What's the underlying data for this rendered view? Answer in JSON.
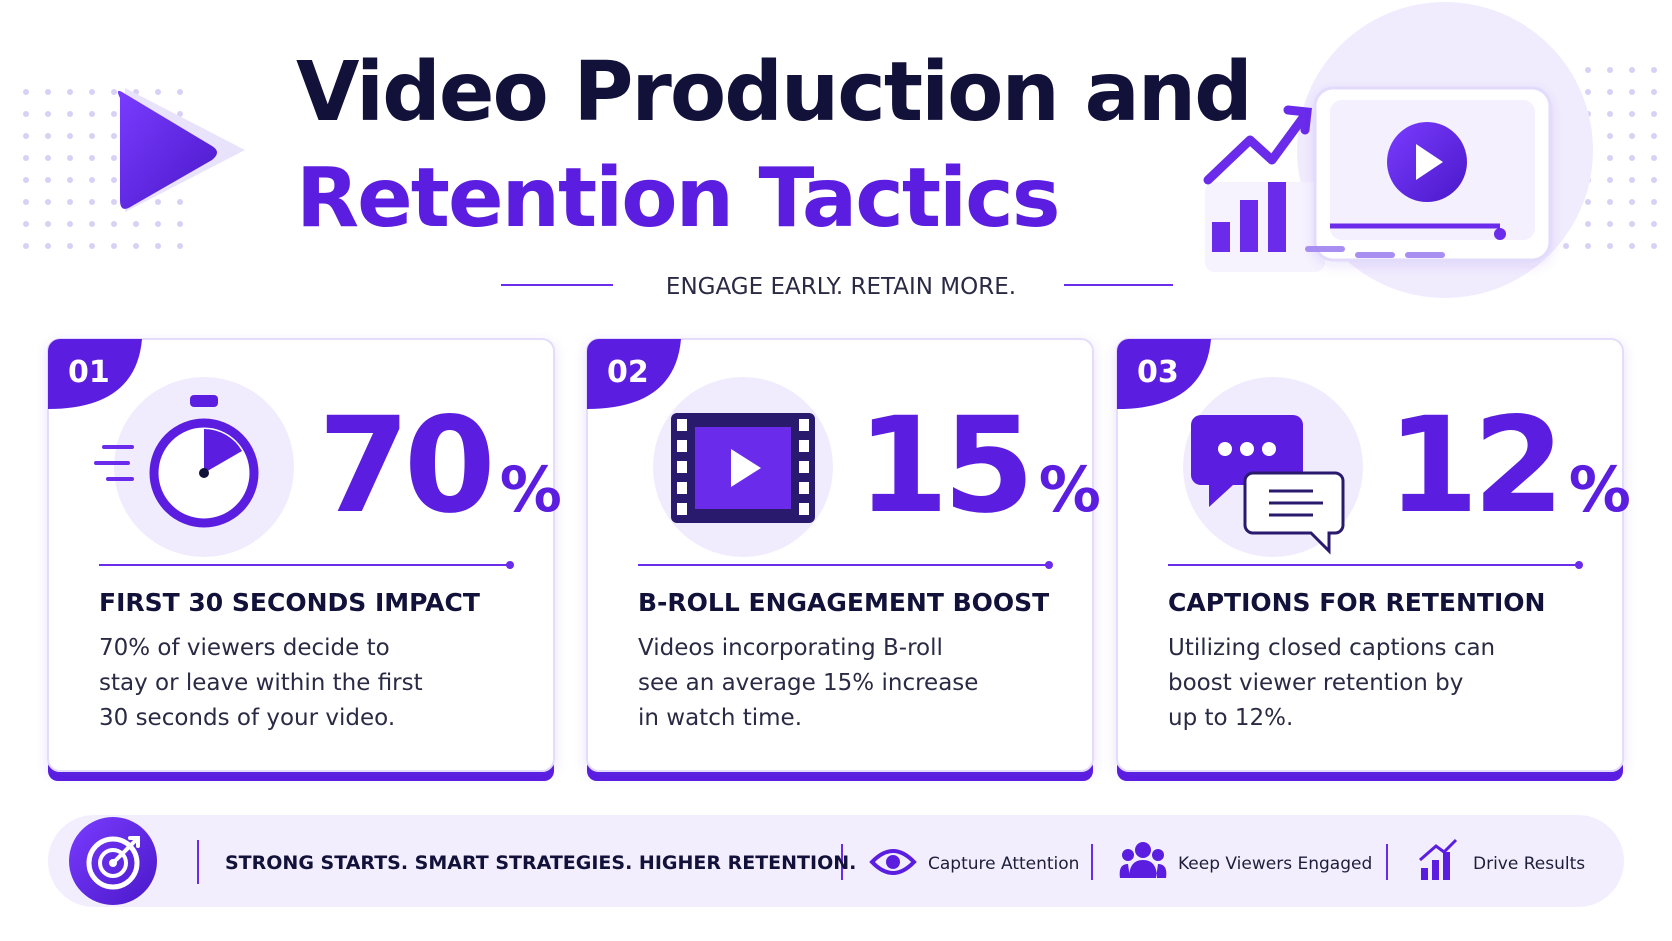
{
  "header": {
    "title_line1": "Video Production and",
    "title_line2": "Retention Tactics",
    "tagline": "ENGAGE EARLY. RETAIN MORE."
  },
  "cards": [
    {
      "number": "01",
      "stat_value": "70",
      "stat_unit": "%",
      "heading": "FIRST 30 SECONDS IMPACT",
      "description": [
        "70% of viewers decide to",
        "stay or leave within the first",
        "30 seconds of your video."
      ]
    },
    {
      "number": "02",
      "stat_value": "15",
      "stat_unit": "%",
      "heading": "B-ROLL ENGAGEMENT BOOST",
      "description": [
        "Videos incorporating B-roll",
        "see an average 15% increase",
        "in watch time."
      ]
    },
    {
      "number": "03",
      "stat_value": "12",
      "stat_unit": "%",
      "heading": "CAPTIONS FOR RETENTION",
      "description": [
        "Utilizing closed captions can",
        "boost viewer retention by",
        "up to 12%."
      ]
    }
  ],
  "footer": {
    "slogan": "STRONG STARTS. SMART STRATEGIES. HIGHER RETENTION.",
    "items": [
      "Capture Attention",
      "Keep Viewers Engaged",
      "Drive Results"
    ]
  }
}
